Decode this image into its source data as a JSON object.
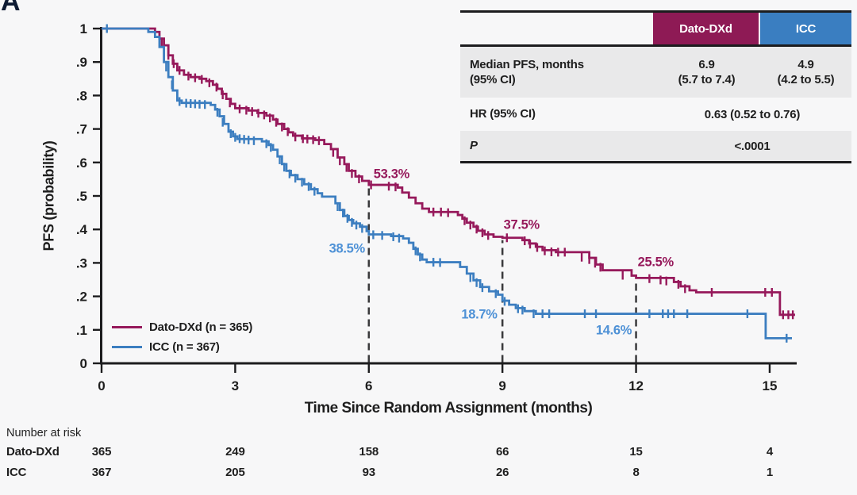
{
  "panel_label": "A",
  "colors": {
    "background": "#F7F7F8",
    "axis": "#1C1C1E",
    "text": "#1E1E1E",
    "dato": "#96195B",
    "dato_header_bg": "#8E1A55",
    "icc": "#3C7EC0",
    "icc_header_bg": "#3A7EC1",
    "icc_annotation": "#4E91D6",
    "dashed_line": "#3A3A3C",
    "table_gray_row": "#E9E9EA"
  },
  "results_table": {
    "header": {
      "col1": "Dato-DXd",
      "col2": "ICC"
    },
    "median_row": {
      "label_line1": "Median PFS, months",
      "label_line2": "(95% CI)",
      "dato_line1": "6.9",
      "dato_line2": "(5.7 to 7.4)",
      "icc_line1": "4.9",
      "icc_line2": "(4.2 to 5.5)"
    },
    "hr_row": {
      "label": "HR (95% CI)",
      "value": "0.63 (0.52 to 0.76)"
    },
    "p_row": {
      "label": "P",
      "value": "<.0001"
    }
  },
  "legend": {
    "items": [
      {
        "label": "Dato-DXd (n = 365)",
        "color": "#96195B"
      },
      {
        "label": "ICC (n = 367)",
        "color": "#3C7EC0"
      }
    ]
  },
  "risk_table": {
    "title": "Number at risk",
    "times": [
      0,
      3,
      6,
      9,
      12,
      15
    ],
    "rows": [
      {
        "label": "Dato-DXd",
        "values": [
          "365",
          "249",
          "158",
          "66",
          "15",
          "4"
        ]
      },
      {
        "label": "ICC",
        "values": [
          "367",
          "205",
          "93",
          "26",
          "8",
          "1"
        ]
      }
    ]
  },
  "chart_data": {
    "type": "line",
    "subtype": "kaplan-meier-step",
    "xlabel": "Time Since Random Assignment (months)",
    "ylabel": "PFS (probability)",
    "xlim": [
      0,
      15.6
    ],
    "ylim": [
      0,
      1
    ],
    "grid": false,
    "xticks": [
      0,
      3,
      6,
      9,
      12,
      15
    ],
    "ytick_labels": [
      "0",
      ".1",
      ".2",
      ".3",
      ".4",
      ".5",
      ".6",
      ".7",
      ".8",
      ".9",
      "1"
    ],
    "dashed_lines": [
      {
        "x": 6,
        "top": 0.533
      },
      {
        "x": 9,
        "top": 0.375
      },
      {
        "x": 12,
        "top": 0.255
      }
    ],
    "annotations": [
      {
        "text": "53.3%",
        "t": 6.51,
        "p": 0.564,
        "color": "#96195B"
      },
      {
        "text": "38.5%",
        "t": 5.51,
        "p": 0.341,
        "color": "#4E91D6"
      },
      {
        "text": "37.5%",
        "t": 9.43,
        "p": 0.412,
        "color": "#96195B"
      },
      {
        "text": "18.7%",
        "t": 8.48,
        "p": 0.145,
        "color": "#4E91D6"
      },
      {
        "text": "25.5%",
        "t": 12.44,
        "p": 0.301,
        "color": "#96195B"
      },
      {
        "text": "14.6%",
        "t": 11.5,
        "p": 0.097,
        "color": "#4E91D6"
      }
    ],
    "series": [
      {
        "name": "Dato-DXd",
        "n": 365,
        "color": "#96195B",
        "milestones": {
          "6": 0.533,
          "9": 0.375,
          "12": 0.255
        },
        "median_months": 6.9,
        "steps": [
          [
            0,
            1
          ],
          [
            1.2,
            0.99
          ],
          [
            1.3,
            0.97
          ],
          [
            1.4,
            0.95
          ],
          [
            1.5,
            0.92
          ],
          [
            1.6,
            0.895
          ],
          [
            1.7,
            0.875
          ],
          [
            1.85,
            0.862
          ],
          [
            2.0,
            0.855
          ],
          [
            2.2,
            0.85
          ],
          [
            2.35,
            0.843
          ],
          [
            2.5,
            0.832
          ],
          [
            2.6,
            0.82
          ],
          [
            2.7,
            0.805
          ],
          [
            2.8,
            0.79
          ],
          [
            2.9,
            0.775
          ],
          [
            3.0,
            0.762
          ],
          [
            3.3,
            0.755
          ],
          [
            3.5,
            0.748
          ],
          [
            3.7,
            0.74
          ],
          [
            3.85,
            0.728
          ],
          [
            3.95,
            0.715
          ],
          [
            4.1,
            0.7
          ],
          [
            4.2,
            0.69
          ],
          [
            4.3,
            0.68
          ],
          [
            4.5,
            0.672
          ],
          [
            4.8,
            0.667
          ],
          [
            5.0,
            0.655
          ],
          [
            5.15,
            0.64
          ],
          [
            5.3,
            0.615
          ],
          [
            5.45,
            0.595
          ],
          [
            5.55,
            0.575
          ],
          [
            5.7,
            0.558
          ],
          [
            5.85,
            0.545
          ],
          [
            6.0,
            0.533
          ],
          [
            6.65,
            0.525
          ],
          [
            6.75,
            0.51
          ],
          [
            6.9,
            0.495
          ],
          [
            7.05,
            0.478
          ],
          [
            7.2,
            0.462
          ],
          [
            7.35,
            0.452
          ],
          [
            8.0,
            0.443
          ],
          [
            8.1,
            0.432
          ],
          [
            8.2,
            0.42
          ],
          [
            8.35,
            0.408
          ],
          [
            8.45,
            0.396
          ],
          [
            8.6,
            0.385
          ],
          [
            8.8,
            0.378
          ],
          [
            9.0,
            0.375
          ],
          [
            9.45,
            0.368
          ],
          [
            9.6,
            0.358
          ],
          [
            9.75,
            0.348
          ],
          [
            9.9,
            0.338
          ],
          [
            10.2,
            0.332
          ],
          [
            10.95,
            0.315
          ],
          [
            11.1,
            0.295
          ],
          [
            11.25,
            0.278
          ],
          [
            11.9,
            0.262
          ],
          [
            12.0,
            0.255
          ],
          [
            12.85,
            0.243
          ],
          [
            13.0,
            0.23
          ],
          [
            13.2,
            0.218
          ],
          [
            13.35,
            0.212
          ],
          [
            15.23,
            0.145
          ],
          [
            15.57,
            0.145
          ]
        ],
        "censors": [
          [
            1.35,
            0.96
          ],
          [
            1.5,
            0.92
          ],
          [
            1.62,
            0.895
          ],
          [
            1.75,
            0.875
          ],
          [
            1.95,
            0.858
          ],
          [
            2.1,
            0.853
          ],
          [
            2.25,
            0.848
          ],
          [
            2.42,
            0.838
          ],
          [
            2.58,
            0.825
          ],
          [
            2.72,
            0.802
          ],
          [
            2.88,
            0.778
          ],
          [
            3.1,
            0.76
          ],
          [
            3.25,
            0.756
          ],
          [
            3.38,
            0.752
          ],
          [
            3.52,
            0.747
          ],
          [
            3.65,
            0.742
          ],
          [
            3.78,
            0.733
          ],
          [
            3.92,
            0.72
          ],
          [
            4.05,
            0.706
          ],
          [
            4.18,
            0.692
          ],
          [
            4.35,
            0.676
          ],
          [
            4.52,
            0.671
          ],
          [
            4.62,
            0.67
          ],
          [
            4.75,
            0.668
          ],
          [
            4.88,
            0.665
          ],
          [
            5.2,
            0.63
          ],
          [
            5.35,
            0.605
          ],
          [
            5.5,
            0.585
          ],
          [
            5.62,
            0.567
          ],
          [
            5.78,
            0.551
          ],
          [
            6.05,
            0.533
          ],
          [
            6.45,
            0.529
          ],
          [
            6.6,
            0.527
          ],
          [
            7.45,
            0.452
          ],
          [
            7.62,
            0.452
          ],
          [
            7.78,
            0.45
          ],
          [
            8.15,
            0.426
          ],
          [
            8.28,
            0.413
          ],
          [
            8.42,
            0.401
          ],
          [
            8.55,
            0.39
          ],
          [
            8.68,
            0.382
          ],
          [
            9.1,
            0.375
          ],
          [
            9.5,
            0.366
          ],
          [
            9.62,
            0.356
          ],
          [
            9.78,
            0.346
          ],
          [
            9.95,
            0.336
          ],
          [
            10.1,
            0.333
          ],
          [
            10.25,
            0.332
          ],
          [
            10.4,
            0.332
          ],
          [
            10.78,
            0.317
          ],
          [
            10.95,
            0.31
          ],
          [
            11.08,
            0.299
          ],
          [
            11.2,
            0.287
          ],
          [
            11.7,
            0.263
          ],
          [
            12.3,
            0.253
          ],
          [
            12.55,
            0.249
          ],
          [
            12.68,
            0.246
          ],
          [
            12.95,
            0.236
          ],
          [
            13.1,
            0.223
          ],
          [
            13.7,
            0.212
          ],
          [
            14.9,
            0.212
          ],
          [
            15.05,
            0.212
          ],
          [
            15.3,
            0.145
          ],
          [
            15.42,
            0.145
          ],
          [
            15.52,
            0.145
          ]
        ]
      },
      {
        "name": "ICC",
        "n": 367,
        "color": "#3C7EC0",
        "milestones": {
          "6": 0.385,
          "9": 0.187,
          "12": 0.146
        },
        "median_months": 4.9,
        "steps": [
          [
            0,
            1
          ],
          [
            1.05,
            0.99
          ],
          [
            1.2,
            0.975
          ],
          [
            1.3,
            0.945
          ],
          [
            1.4,
            0.9
          ],
          [
            1.5,
            0.855
          ],
          [
            1.6,
            0.815
          ],
          [
            1.7,
            0.785
          ],
          [
            1.8,
            0.778
          ],
          [
            2.45,
            0.772
          ],
          [
            2.55,
            0.758
          ],
          [
            2.65,
            0.738
          ],
          [
            2.75,
            0.715
          ],
          [
            2.85,
            0.692
          ],
          [
            2.95,
            0.678
          ],
          [
            3.05,
            0.67
          ],
          [
            3.6,
            0.663
          ],
          [
            3.75,
            0.652
          ],
          [
            3.85,
            0.638
          ],
          [
            3.95,
            0.618
          ],
          [
            4.05,
            0.595
          ],
          [
            4.15,
            0.575
          ],
          [
            4.25,
            0.562
          ],
          [
            4.4,
            0.55
          ],
          [
            4.55,
            0.535
          ],
          [
            4.7,
            0.52
          ],
          [
            4.85,
            0.508
          ],
          [
            4.95,
            0.498
          ],
          [
            5.25,
            0.478
          ],
          [
            5.35,
            0.458
          ],
          [
            5.45,
            0.44
          ],
          [
            5.55,
            0.428
          ],
          [
            5.65,
            0.418
          ],
          [
            5.8,
            0.408
          ],
          [
            5.95,
            0.395
          ],
          [
            6.0,
            0.385
          ],
          [
            6.5,
            0.38
          ],
          [
            6.77,
            0.373
          ],
          [
            6.9,
            0.36
          ],
          [
            7.0,
            0.342
          ],
          [
            7.1,
            0.325
          ],
          [
            7.2,
            0.31
          ],
          [
            7.3,
            0.302
          ],
          [
            8.05,
            0.288
          ],
          [
            8.2,
            0.268
          ],
          [
            8.35,
            0.248
          ],
          [
            8.5,
            0.228
          ],
          [
            8.7,
            0.215
          ],
          [
            8.9,
            0.205
          ],
          [
            9.0,
            0.187
          ],
          [
            9.15,
            0.175
          ],
          [
            9.3,
            0.165
          ],
          [
            9.5,
            0.156
          ],
          [
            9.75,
            0.148
          ],
          [
            14.91,
            0.075
          ],
          [
            15.5,
            0.075
          ]
        ],
        "censors": [
          [
            0.12,
            1
          ],
          [
            1.45,
            0.885
          ],
          [
            1.58,
            0.832
          ],
          [
            1.75,
            0.782
          ],
          [
            1.9,
            0.777
          ],
          [
            2.0,
            0.776
          ],
          [
            2.1,
            0.775
          ],
          [
            2.2,
            0.774
          ],
          [
            2.32,
            0.773
          ],
          [
            2.6,
            0.75
          ],
          [
            2.72,
            0.72
          ],
          [
            2.9,
            0.686
          ],
          [
            3.0,
            0.675
          ],
          [
            3.1,
            0.671
          ],
          [
            3.2,
            0.669
          ],
          [
            3.3,
            0.667
          ],
          [
            3.42,
            0.665
          ],
          [
            3.7,
            0.656
          ],
          [
            3.8,
            0.645
          ],
          [
            4.0,
            0.608
          ],
          [
            4.1,
            0.586
          ],
          [
            4.22,
            0.566
          ],
          [
            4.35,
            0.553
          ],
          [
            4.5,
            0.541
          ],
          [
            4.65,
            0.528
          ],
          [
            4.78,
            0.514
          ],
          [
            5.3,
            0.468
          ],
          [
            5.42,
            0.449
          ],
          [
            5.52,
            0.433
          ],
          [
            5.62,
            0.421
          ],
          [
            5.72,
            0.413
          ],
          [
            5.85,
            0.403
          ],
          [
            6.1,
            0.384
          ],
          [
            6.3,
            0.382
          ],
          [
            6.55,
            0.378
          ],
          [
            6.68,
            0.374
          ],
          [
            7.05,
            0.336
          ],
          [
            7.15,
            0.318
          ],
          [
            7.45,
            0.302
          ],
          [
            7.6,
            0.301
          ],
          [
            8.28,
            0.256
          ],
          [
            8.42,
            0.241
          ],
          [
            8.55,
            0.226
          ],
          [
            8.85,
            0.208
          ],
          [
            9.05,
            0.185
          ],
          [
            9.35,
            0.163
          ],
          [
            9.45,
            0.159
          ],
          [
            9.7,
            0.148
          ],
          [
            9.9,
            0.148
          ],
          [
            10.05,
            0.148
          ],
          [
            10.85,
            0.148
          ],
          [
            11.1,
            0.148
          ],
          [
            12.3,
            0.148
          ],
          [
            12.6,
            0.148
          ],
          [
            12.72,
            0.148
          ],
          [
            12.85,
            0.148
          ],
          [
            13.15,
            0.148
          ],
          [
            14.5,
            0.148
          ],
          [
            15.38,
            0.075
          ]
        ]
      }
    ]
  }
}
